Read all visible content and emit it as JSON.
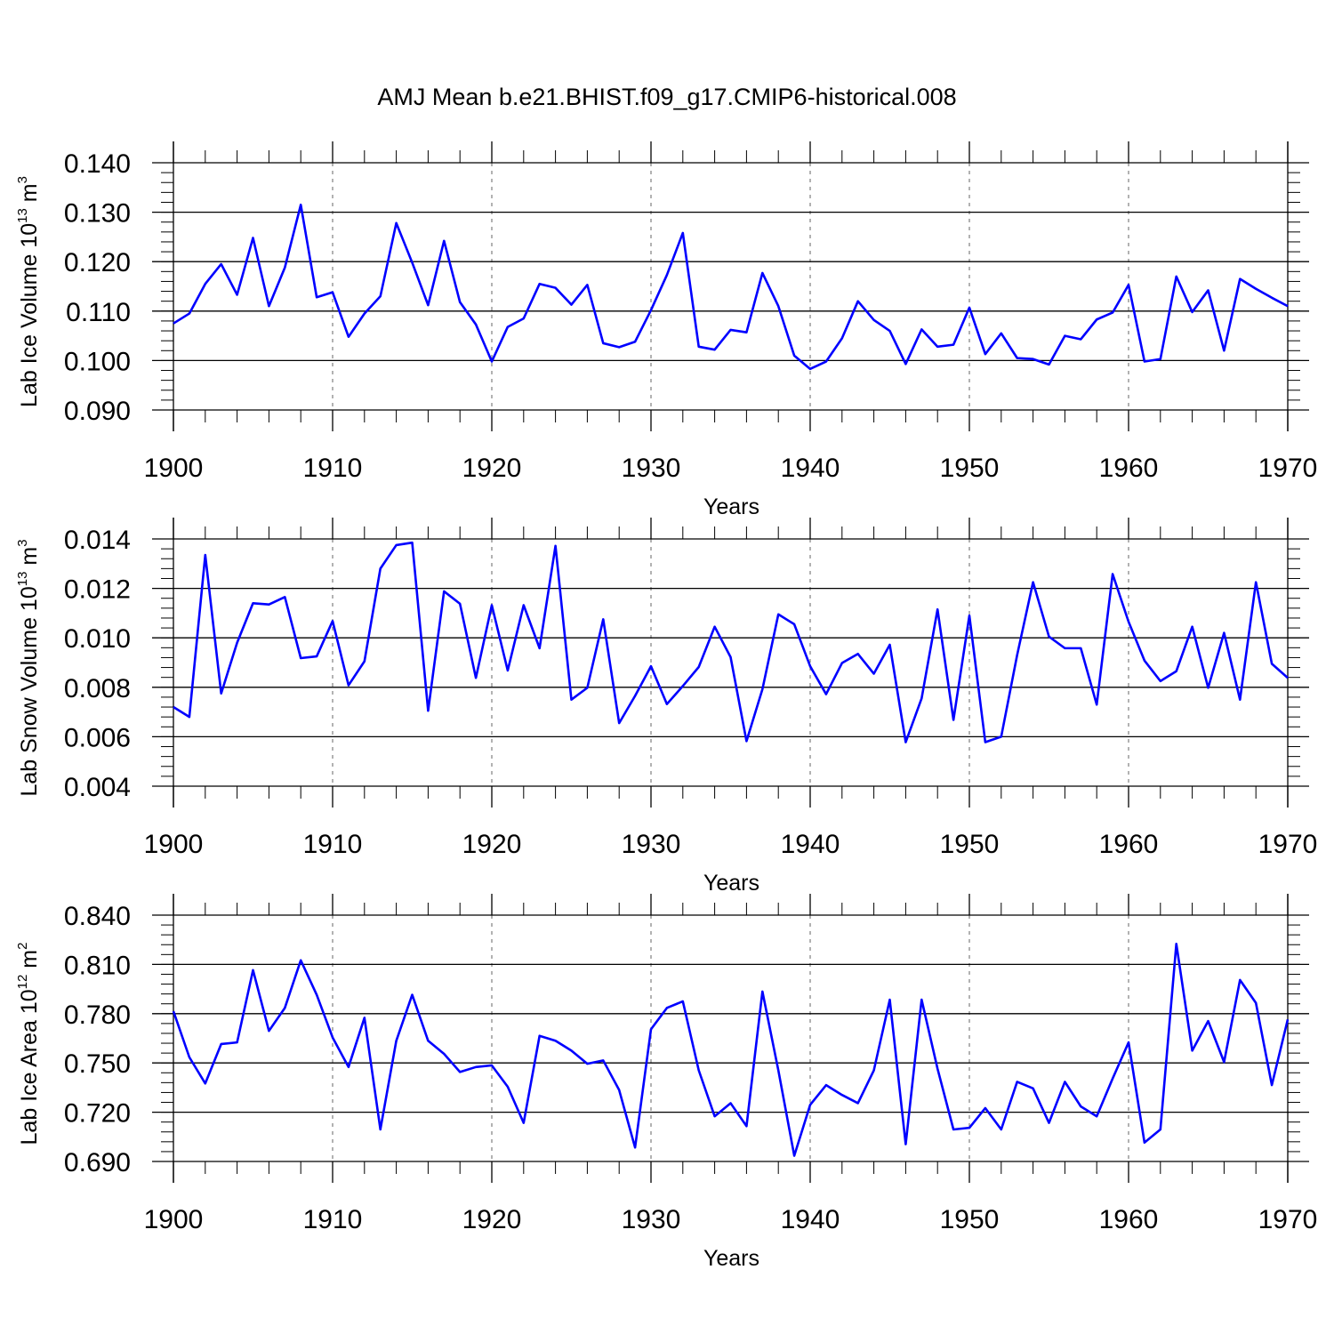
{
  "title": "AMJ Mean b.e21.BHIST.f09_g17.CMIP6-historical.008",
  "colors": {
    "line": "#0000ff",
    "axis": "#000000",
    "grid": "#7f7f7f"
  },
  "chart_data": [
    {
      "type": "line",
      "name": "ice-volume",
      "ylabel_main": "Lab Ice Volume 10",
      "ylabel_exp": "13",
      "ylabel_unit": " m",
      "ylabel_unit_exp": "3",
      "xlabel": "Years",
      "xlim": [
        1900,
        1970
      ],
      "ylim": [
        0.09,
        0.14
      ],
      "yticks": [
        0.09,
        0.1,
        0.11,
        0.12,
        0.13,
        0.14
      ],
      "ytick_labels": [
        "0.090",
        "0.100",
        "0.110",
        "0.120",
        "0.130",
        "0.140"
      ],
      "yminor_step": 0.002,
      "xticks": [
        1900,
        1910,
        1920,
        1930,
        1940,
        1950,
        1960,
        1970
      ],
      "xtick_labels": [
        "1900",
        "1910",
        "1920",
        "1930",
        "1940",
        "1950",
        "1960",
        "1970"
      ],
      "grid": "vertical dashed at major x ticks",
      "x": [
        1900,
        1901,
        1902,
        1903,
        1904,
        1905,
        1906,
        1907,
        1908,
        1909,
        1910,
        1911,
        1912,
        1913,
        1914,
        1915,
        1916,
        1917,
        1918,
        1919,
        1920,
        1921,
        1922,
        1923,
        1924,
        1925,
        1926,
        1927,
        1928,
        1929,
        1930,
        1931,
        1932,
        1933,
        1934,
        1935,
        1936,
        1937,
        1938,
        1939,
        1940,
        1941,
        1942,
        1943,
        1944,
        1945,
        1946,
        1947,
        1948,
        1949,
        1950,
        1951,
        1952,
        1953,
        1954,
        1955,
        1956,
        1957,
        1958,
        1959,
        1960,
        1961,
        1962,
        1963,
        1964,
        1965,
        1966,
        1967,
        1968,
        1969,
        1970
      ],
      "values": [
        0.1075,
        0.1095,
        0.1155,
        0.1195,
        0.1133,
        0.1248,
        0.111,
        0.1188,
        0.1315,
        0.1128,
        0.1138,
        0.1048,
        0.1095,
        0.113,
        0.1278,
        0.1198,
        0.1112,
        0.1242,
        0.1118,
        0.1073,
        0.0998,
        0.1068,
        0.1085,
        0.1155,
        0.1147,
        0.1113,
        0.1153,
        0.1035,
        0.1027,
        0.1038,
        0.1102,
        0.1173,
        0.1258,
        0.1028,
        0.1022,
        0.1062,
        0.1057,
        0.1177,
        0.111,
        0.101,
        0.0983,
        0.0998,
        0.1045,
        0.112,
        0.1082,
        0.106,
        0.0993,
        0.1063,
        0.1028,
        0.1032,
        0.1107,
        0.1013,
        0.1055,
        0.1005,
        0.1003,
        0.0992,
        0.105,
        0.1043,
        0.1083,
        0.1097,
        0.1153,
        0.0998,
        0.1003,
        0.117,
        0.1098,
        0.1142,
        0.102,
        0.1165,
        0.1145,
        0.1127,
        0.111
      ]
    },
    {
      "type": "line",
      "name": "snow-volume",
      "ylabel_main": "Lab Snow Volume 10",
      "ylabel_exp": "13",
      "ylabel_unit": " m",
      "ylabel_unit_exp": "3",
      "xlabel": "Years",
      "xlim": [
        1900,
        1970
      ],
      "ylim": [
        0.004,
        0.014
      ],
      "yticks": [
        0.004,
        0.006,
        0.008,
        0.01,
        0.012,
        0.014
      ],
      "ytick_labels": [
        "0.004",
        "0.006",
        "0.008",
        "0.010",
        "0.012",
        "0.014"
      ],
      "yminor_step": 0.0004,
      "xticks": [
        1900,
        1910,
        1920,
        1930,
        1940,
        1950,
        1960,
        1970
      ],
      "xtick_labels": [
        "1900",
        "1910",
        "1920",
        "1930",
        "1940",
        "1950",
        "1960",
        "1970"
      ],
      "grid": "vertical dashed at major x ticks",
      "x": [
        1900,
        1901,
        1902,
        1903,
        1904,
        1905,
        1906,
        1907,
        1908,
        1909,
        1910,
        1911,
        1912,
        1913,
        1914,
        1915,
        1916,
        1917,
        1918,
        1919,
        1920,
        1921,
        1922,
        1923,
        1924,
        1925,
        1926,
        1927,
        1928,
        1929,
        1930,
        1931,
        1932,
        1933,
        1934,
        1935,
        1936,
        1937,
        1938,
        1939,
        1940,
        1941,
        1942,
        1943,
        1944,
        1945,
        1946,
        1947,
        1948,
        1949,
        1950,
        1951,
        1952,
        1953,
        1954,
        1955,
        1956,
        1957,
        1958,
        1959,
        1960,
        1961,
        1962,
        1963,
        1964,
        1965,
        1966,
        1967,
        1968,
        1969,
        1970
      ],
      "values": [
        0.0072,
        0.0068,
        0.01335,
        0.00775,
        0.0098,
        0.0114,
        0.01135,
        0.01165,
        0.00918,
        0.00925,
        0.01068,
        0.00808,
        0.00905,
        0.0128,
        0.01375,
        0.01385,
        0.00705,
        0.01188,
        0.01138,
        0.00838,
        0.01132,
        0.00868,
        0.01132,
        0.00958,
        0.01372,
        0.0075,
        0.00798,
        0.01075,
        0.00655,
        0.00765,
        0.00885,
        0.00732,
        0.00805,
        0.00882,
        0.01045,
        0.00922,
        0.00582,
        0.00792,
        0.01095,
        0.01055,
        0.00885,
        0.00772,
        0.00898,
        0.00935,
        0.00855,
        0.00972,
        0.00578,
        0.00755,
        0.01115,
        0.00668,
        0.0109,
        0.00578,
        0.006,
        0.0093,
        0.01225,
        0.01005,
        0.00958,
        0.00958,
        0.0073,
        0.01258,
        0.01065,
        0.00908,
        0.00825,
        0.00865,
        0.01045,
        0.00798,
        0.0102,
        0.0075,
        0.01225,
        0.00895,
        0.00838
      ]
    },
    {
      "type": "line",
      "name": "ice-area",
      "ylabel_main": "Lab Ice Area 10",
      "ylabel_exp": "12",
      "ylabel_unit": " m",
      "ylabel_unit_exp": "2",
      "xlabel": "Years",
      "xlim": [
        1900,
        1970
      ],
      "ylim": [
        0.69,
        0.84
      ],
      "yticks": [
        0.69,
        0.72,
        0.75,
        0.78,
        0.81,
        0.84
      ],
      "ytick_labels": [
        "0.690",
        "0.720",
        "0.750",
        "0.780",
        "0.810",
        "0.840"
      ],
      "yminor_step": 0.006,
      "xticks": [
        1900,
        1910,
        1920,
        1930,
        1940,
        1950,
        1960,
        1970
      ],
      "xtick_labels": [
        "1900",
        "1910",
        "1920",
        "1930",
        "1940",
        "1950",
        "1960",
        "1970"
      ],
      "grid": "vertical dashed at major x ticks",
      "x": [
        1900,
        1901,
        1902,
        1903,
        1904,
        1905,
        1906,
        1907,
        1908,
        1909,
        1910,
        1911,
        1912,
        1913,
        1914,
        1915,
        1916,
        1917,
        1918,
        1919,
        1920,
        1921,
        1922,
        1923,
        1924,
        1925,
        1926,
        1927,
        1928,
        1929,
        1930,
        1931,
        1932,
        1933,
        1934,
        1935,
        1936,
        1937,
        1938,
        1939,
        1940,
        1941,
        1942,
        1943,
        1944,
        1945,
        1946,
        1947,
        1948,
        1949,
        1950,
        1951,
        1952,
        1953,
        1954,
        1955,
        1956,
        1957,
        1958,
        1959,
        1960,
        1961,
        1962,
        1963,
        1964,
        1965,
        1966,
        1967,
        1968,
        1969,
        1970
      ],
      "values": [
        0.7815,
        0.7535,
        0.7375,
        0.7615,
        0.7625,
        0.8065,
        0.7695,
        0.7835,
        0.8125,
        0.7915,
        0.7655,
        0.7475,
        0.7775,
        0.7095,
        0.7635,
        0.7915,
        0.7635,
        0.7555,
        0.7445,
        0.7475,
        0.7485,
        0.7355,
        0.7135,
        0.7665,
        0.7635,
        0.7575,
        0.7495,
        0.7515,
        0.7335,
        0.6985,
        0.7705,
        0.7835,
        0.7875,
        0.7455,
        0.7175,
        0.7255,
        0.7115,
        0.7935,
        0.7455,
        0.6935,
        0.7245,
        0.7365,
        0.7305,
        0.7255,
        0.7455,
        0.7885,
        0.7005,
        0.7885,
        0.7465,
        0.7095,
        0.7105,
        0.7225,
        0.7095,
        0.7385,
        0.7345,
        0.7135,
        0.7385,
        0.7235,
        0.7175,
        0.7405,
        0.7625,
        0.7015,
        0.7095,
        0.8225,
        0.7575,
        0.7755,
        0.7505,
        0.8005,
        0.7865,
        0.7365,
        0.7765
      ]
    }
  ]
}
